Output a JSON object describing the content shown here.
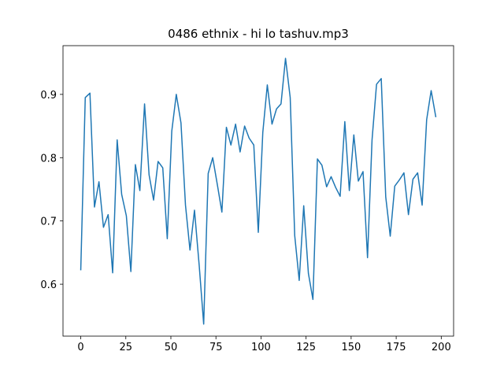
{
  "chart_data": {
    "type": "line",
    "title": "0486 ethnix - hi lo tashuv.mp3",
    "x": [
      0,
      2.5,
      5.1,
      7.6,
      10.1,
      12.6,
      15.2,
      17.7,
      20.2,
      22.7,
      25.3,
      27.8,
      30.3,
      32.8,
      35.4,
      37.9,
      40.4,
      42.9,
      45.5,
      48.0,
      50.5,
      53.0,
      55.6,
      58.1,
      60.6,
      63.1,
      65.7,
      68.2,
      70.7,
      73.2,
      75.8,
      78.3,
      80.8,
      83.3,
      85.9,
      88.4,
      90.9,
      93.4,
      96.0,
      98.5,
      101.0,
      103.5,
      106.1,
      108.6,
      111.1,
      113.6,
      116.2,
      118.7,
      121.2,
      123.7,
      126.3,
      128.8,
      131.3,
      133.8,
      136.4,
      138.9,
      141.4,
      143.9,
      146.5,
      149.0,
      151.5,
      154.0,
      156.6,
      159.1,
      161.6,
      164.1,
      166.7,
      169.2,
      171.7,
      174.2,
      176.8,
      179.3,
      181.8,
      184.3,
      186.9,
      189.4,
      191.9,
      194.4,
      197.0
    ],
    "series": [
      {
        "color": "#1f77b4",
        "values": [
          0.622,
          0.895,
          0.902,
          0.722,
          0.762,
          0.69,
          0.71,
          0.618,
          0.828,
          0.742,
          0.708,
          0.62,
          0.789,
          0.748,
          0.885,
          0.773,
          0.733,
          0.794,
          0.784,
          0.672,
          0.842,
          0.9,
          0.855,
          0.725,
          0.654,
          0.717,
          0.63,
          0.537,
          0.775,
          0.8,
          0.757,
          0.714,
          0.848,
          0.82,
          0.853,
          0.809,
          0.85,
          0.831,
          0.82,
          0.682,
          0.84,
          0.915,
          0.853,
          0.877,
          0.885,
          0.957,
          0.895,
          0.677,
          0.606,
          0.724,
          0.617,
          0.576,
          0.798,
          0.788,
          0.754,
          0.77,
          0.753,
          0.739,
          0.857,
          0.748,
          0.836,
          0.763,
          0.778,
          0.642,
          0.828,
          0.916,
          0.925,
          0.738,
          0.676,
          0.755,
          0.765,
          0.776,
          0.71,
          0.766,
          0.776,
          0.725,
          0.86,
          0.906,
          0.864
        ]
      }
    ],
    "xlim": [
      -9.85,
      206.85
    ],
    "xticks": [
      0,
      25,
      50,
      75,
      100,
      125,
      150,
      175,
      200
    ],
    "ylim": [
      0.518,
      0.977
    ],
    "yticks": [
      0.6,
      0.7,
      0.8,
      0.9
    ],
    "grid": false
  }
}
